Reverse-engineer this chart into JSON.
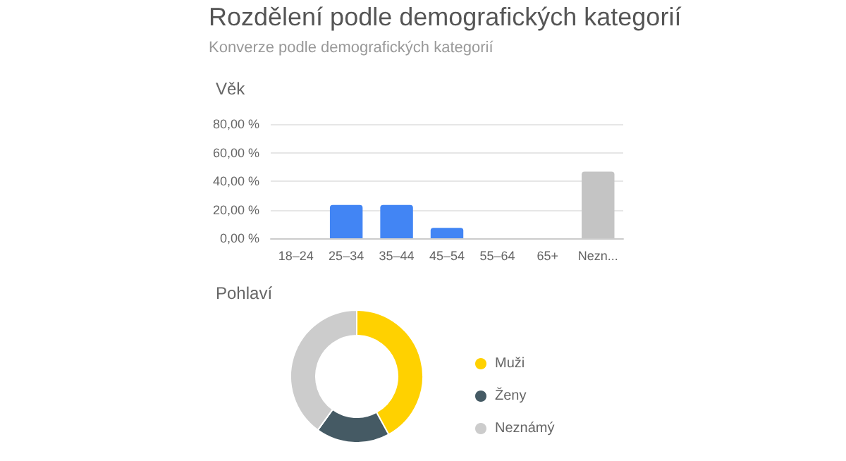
{
  "chart_data": [
    {
      "type": "other",
      "title": "Rozdělení podle demografických kategorií",
      "subtitle": "Konverze podle demografických kategorií"
    },
    {
      "type": "bar",
      "title": "Věk",
      "categories": [
        "18–24",
        "25–34",
        "35–44",
        "45–54",
        "55–64",
        "65+",
        "Nezn..."
      ],
      "values": [
        0,
        23.3,
        23.3,
        7.3,
        0,
        0,
        46.7
      ],
      "colors": [
        "#4285f4",
        "#4285f4",
        "#4285f4",
        "#4285f4",
        "#4285f4",
        "#4285f4",
        "#c4c4c4"
      ],
      "ylim": [
        0,
        80
      ],
      "yticks": [
        {
          "value": 0,
          "label": "0,00 %"
        },
        {
          "value": 20,
          "label": "20,00 %"
        },
        {
          "value": 40,
          "label": "40,00 %"
        },
        {
          "value": 60,
          "label": "60,00 %"
        },
        {
          "value": 80,
          "label": "80,00 %"
        }
      ],
      "grid": "y"
    },
    {
      "type": "donut",
      "title": "Pohlaví",
      "categories": [
        "Muži",
        "Ženy",
        "Neznámý"
      ],
      "values": [
        42,
        18,
        40
      ],
      "colors": [
        "#ffd100",
        "#455a64",
        "#cccccc"
      ],
      "legend": "right"
    }
  ]
}
